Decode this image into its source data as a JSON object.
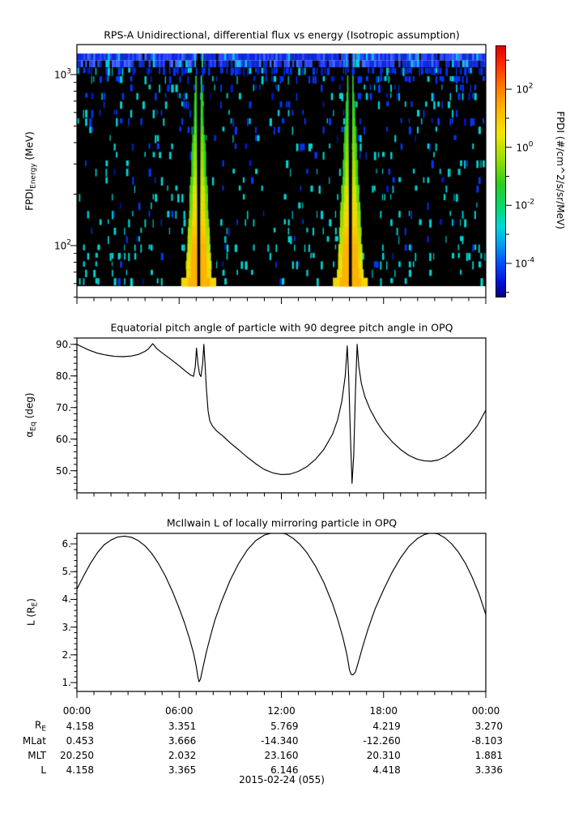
{
  "figure": {
    "background": "#ffffff",
    "foreground": "#000000",
    "colormap": "jet"
  },
  "chart_data": [
    {
      "type": "heatmap",
      "title": "RPS-A Unidirectional, differential flux vs energy (Isotropic assumption)",
      "ylabel": "FPDI_Energy (MeV)",
      "ylabel_parts": {
        "main": "FPDI",
        "sub": "Energy",
        "rest": " (MeV)"
      },
      "y_scale": "log",
      "energy_range_mev": [
        50,
        1500
      ],
      "y_tick_exponents": [
        3,
        2
      ],
      "x_ticks": {
        "hours": [
          0,
          6,
          12,
          18,
          24
        ],
        "labels": [
          "00:00",
          "06:00",
          "12:00",
          "18:00",
          "00:00"
        ],
        "minor_every_h": 1
      },
      "colorbar": {
        "label": "FPDI (#/cm^2/s/sr/MeV)",
        "tick_exponents_labeled": [
          2,
          0,
          -2,
          -4
        ],
        "tick_exponents_all": [
          3,
          2,
          1,
          0,
          -1,
          -2,
          -3,
          -4,
          -5
        ],
        "exp_range_top_bottom": [
          3.51,
          -5.12
        ]
      },
      "features": {
        "description": "black background with sparse blue/cyan speckle noise; solid blue noise band at highest energies; two green-to-yellow flux plumes widening toward low energy at perigee passes",
        "plume_times_h": [
          7.15,
          16.05
        ],
        "plume_gap": "thin black data-gap column at each plume center",
        "seed": 42,
        "n_energy_rows": 26,
        "top_band_energy_mev": 1300
      }
    },
    {
      "type": "line",
      "title": "Equatorial pitch angle of particle with 90 degree pitch angle in OPQ",
      "ylabel": "α_Eq (deg)",
      "ylabel_parts": {
        "main": "α",
        "sub": "Eq",
        "rest": " (deg)"
      },
      "ylim": [
        43,
        92
      ],
      "y_ticks": [
        90,
        80,
        70,
        60,
        50
      ],
      "y_tick_labels": [
        "90.",
        "80.",
        "70.",
        "60.",
        "50."
      ],
      "y_minor_step": 2,
      "x_ticks": {
        "hours": [
          0,
          6,
          12,
          18,
          24
        ],
        "labels": [
          "00:00",
          "06:00",
          "12:00",
          "18:00",
          "00:00"
        ],
        "minor_every_h": 1
      },
      "points_t_deg": [
        [
          0,
          90
        ],
        [
          0.3,
          89.2
        ],
        [
          0.7,
          88.2
        ],
        [
          1.2,
          87.2
        ],
        [
          1.7,
          86.6
        ],
        [
          2.2,
          86.2
        ],
        [
          2.7,
          86.1
        ],
        [
          3.2,
          86.3
        ],
        [
          3.6,
          86.8
        ],
        [
          4,
          87.8
        ],
        [
          4.2,
          88.6
        ],
        [
          4.45,
          90.2
        ],
        [
          4.7,
          88.6
        ],
        [
          5,
          87.3
        ],
        [
          5.5,
          85.3
        ],
        [
          6,
          83.2
        ],
        [
          6.4,
          81.4
        ],
        [
          6.7,
          80.2
        ],
        [
          6.85,
          79.9
        ],
        [
          6.95,
          83
        ],
        [
          7.02,
          88.8
        ],
        [
          7.1,
          84
        ],
        [
          7.2,
          80.5
        ],
        [
          7.28,
          79.8
        ],
        [
          7.38,
          84
        ],
        [
          7.45,
          90
        ],
        [
          7.52,
          84
        ],
        [
          7.6,
          76
        ],
        [
          7.7,
          69
        ],
        [
          7.8,
          65.8
        ],
        [
          7.95,
          64.2
        ],
        [
          8.2,
          62.6
        ],
        [
          8.6,
          60.8
        ],
        [
          9,
          58.8
        ],
        [
          9.5,
          56.6
        ],
        [
          10,
          54.3
        ],
        [
          10.5,
          52.2
        ],
        [
          11,
          50.4
        ],
        [
          11.5,
          49.3
        ],
        [
          12,
          48.8
        ],
        [
          12.5,
          48.9
        ],
        [
          13,
          49.8
        ],
        [
          13.5,
          51.3
        ],
        [
          14,
          53.6
        ],
        [
          14.5,
          56.8
        ],
        [
          15,
          61.5
        ],
        [
          15.3,
          66
        ],
        [
          15.55,
          72
        ],
        [
          15.75,
          80
        ],
        [
          15.87,
          89.5
        ],
        [
          15.95,
          80
        ],
        [
          16.05,
          62
        ],
        [
          16.15,
          46
        ],
        [
          16.25,
          55
        ],
        [
          16.35,
          75
        ],
        [
          16.45,
          90
        ],
        [
          16.55,
          83
        ],
        [
          16.7,
          77.5
        ],
        [
          16.9,
          73.5
        ],
        [
          17.2,
          69.5
        ],
        [
          17.6,
          65.5
        ],
        [
          18,
          62.3
        ],
        [
          18.5,
          59.2
        ],
        [
          19,
          56.7
        ],
        [
          19.5,
          54.8
        ],
        [
          20,
          53.6
        ],
        [
          20.4,
          53.1
        ],
        [
          20.8,
          53
        ],
        [
          21.2,
          53.4
        ],
        [
          21.6,
          54.4
        ],
        [
          22,
          55.9
        ],
        [
          22.5,
          58.2
        ],
        [
          23,
          60.9
        ],
        [
          23.5,
          64.2
        ],
        [
          24,
          69.2
        ]
      ]
    },
    {
      "type": "line",
      "title": "McIlwain L of locally mirroring particle in OPQ",
      "ylabel": "L (R_E)",
      "ylabel_parts": {
        "main": "L (R",
        "sub": "E",
        "rest": ")"
      },
      "ylim": [
        0.68,
        6.38
      ],
      "y_ticks": [
        6,
        5,
        4,
        3,
        2,
        1
      ],
      "y_tick_labels": [
        "6.",
        "5.",
        "4.",
        "3.",
        "2.",
        "1."
      ],
      "y_minor_step": 0.2,
      "x_ticks": {
        "hours": [
          0,
          6,
          12,
          18,
          24
        ],
        "labels": [
          "00:00",
          "06:00",
          "12:00",
          "18:00",
          "00:00"
        ],
        "minor_every_h": 1
      },
      "points_t_l": [
        [
          0,
          4.37
        ],
        [
          0.4,
          4.85
        ],
        [
          0.8,
          5.3
        ],
        [
          1.2,
          5.68
        ],
        [
          1.6,
          5.97
        ],
        [
          2,
          6.14
        ],
        [
          2.4,
          6.25
        ],
        [
          2.8,
          6.28
        ],
        [
          3.2,
          6.24
        ],
        [
          3.6,
          6.12
        ],
        [
          4,
          5.93
        ],
        [
          4.4,
          5.65
        ],
        [
          4.8,
          5.28
        ],
        [
          5.2,
          4.83
        ],
        [
          5.6,
          4.3
        ],
        [
          6,
          3.68
        ],
        [
          6.3,
          3.18
        ],
        [
          6.6,
          2.6
        ],
        [
          6.85,
          2.05
        ],
        [
          7,
          1.6
        ],
        [
          7.1,
          1.2
        ],
        [
          7.17,
          1.03
        ],
        [
          7.25,
          1.12
        ],
        [
          7.4,
          1.55
        ],
        [
          7.6,
          2.1
        ],
        [
          7.85,
          2.7
        ],
        [
          8.1,
          3.25
        ],
        [
          8.5,
          3.95
        ],
        [
          9,
          4.7
        ],
        [
          9.5,
          5.3
        ],
        [
          10,
          5.78
        ],
        [
          10.5,
          6.12
        ],
        [
          11,
          6.32
        ],
        [
          11.5,
          6.4
        ],
        [
          11.9,
          6.41
        ],
        [
          12.3,
          6.35
        ],
        [
          12.7,
          6.2
        ],
        [
          13.1,
          5.98
        ],
        [
          13.5,
          5.68
        ],
        [
          14,
          5.2
        ],
        [
          14.5,
          4.6
        ],
        [
          15,
          3.85
        ],
        [
          15.3,
          3.3
        ],
        [
          15.6,
          2.65
        ],
        [
          15.85,
          2
        ],
        [
          16,
          1.45
        ],
        [
          16.1,
          1.29
        ],
        [
          16.2,
          1.28
        ],
        [
          16.35,
          1.38
        ],
        [
          16.55,
          1.8
        ],
        [
          16.8,
          2.35
        ],
        [
          17.1,
          2.95
        ],
        [
          17.5,
          3.65
        ],
        [
          18,
          4.35
        ],
        [
          18.5,
          4.98
        ],
        [
          19,
          5.5
        ],
        [
          19.5,
          5.92
        ],
        [
          20,
          6.2
        ],
        [
          20.4,
          6.34
        ],
        [
          20.8,
          6.4
        ],
        [
          21.2,
          6.36
        ],
        [
          21.6,
          6.22
        ],
        [
          22,
          6
        ],
        [
          22.4,
          5.7
        ],
        [
          22.8,
          5.3
        ],
        [
          23.2,
          4.8
        ],
        [
          23.6,
          4.2
        ],
        [
          24,
          3.45
        ]
      ]
    },
    {
      "type": "table",
      "time_labels": [
        "00:00",
        "06:00",
        "12:00",
        "18:00",
        "00:00"
      ],
      "rows": [
        {
          "label": "R",
          "label_sub": "E",
          "values": [
            "4.158",
            "3.351",
            "5.769",
            "4.219",
            "3.270"
          ]
        },
        {
          "label": "MLat",
          "label_sub": "",
          "values": [
            "0.453",
            "3.666",
            "-14.340",
            "-12.260",
            "-8.103"
          ]
        },
        {
          "label": "MLT",
          "label_sub": "",
          "values": [
            "20.250",
            "2.032",
            "23.160",
            "20.310",
            "1.881"
          ]
        },
        {
          "label": "L",
          "label_sub": "",
          "values": [
            "4.158",
            "3.365",
            "6.146",
            "4.418",
            "3.336"
          ]
        }
      ],
      "footer": "2015-02-24 (055)"
    }
  ]
}
